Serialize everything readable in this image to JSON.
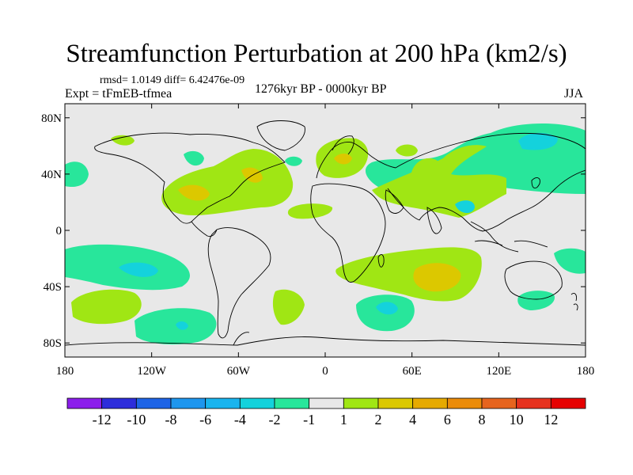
{
  "title": "Streamfunction Perturbation at 200 hPa (km2/s)",
  "stats_line": "rmsd= 1.0149 diff= 6.42476e-09",
  "experiment": "Expt = tFmEB-tfmea",
  "period": "1276kyr BP - 0000kyr BP",
  "season": "JJA",
  "lat_ticks": [
    {
      "lat": 80,
      "label": "80N"
    },
    {
      "lat": 40,
      "label": "40N"
    },
    {
      "lat": 0,
      "label": "0"
    },
    {
      "lat": -40,
      "label": "40S"
    },
    {
      "lat": -80,
      "label": "80S"
    }
  ],
  "lon_ticks": [
    {
      "lon": -180,
      "label": "180"
    },
    {
      "lon": -120,
      "label": "120W"
    },
    {
      "lon": -60,
      "label": "60W"
    },
    {
      "lon": 0,
      "label": "0"
    },
    {
      "lon": 60,
      "label": "60E"
    },
    {
      "lon": 120,
      "label": "120E"
    },
    {
      "lon": 180,
      "label": "180"
    }
  ],
  "colorbar": {
    "colors": [
      "#8c1eeb",
      "#2d2ddb",
      "#1e64e6",
      "#1e96ee",
      "#19b4ee",
      "#14d2dc",
      "#28e69b",
      "#e8e8e8",
      "#a0e614",
      "#dcc800",
      "#e6aa00",
      "#eb8c0a",
      "#e6641e",
      "#e6321e",
      "#e60000"
    ],
    "labels": [
      "-12",
      "-10",
      "-8",
      "-6",
      "-4",
      "-2",
      "-1",
      "1",
      "2",
      "4",
      "6",
      "8",
      "10",
      "12"
    ]
  },
  "map_colors": {
    "background": "#e8e8e8",
    "cyan": "#14d2dc",
    "green": "#28e69b",
    "lime": "#a0e614",
    "mustard": "#dcc800",
    "orange": "#e6aa00",
    "blue": "#19b4ee"
  }
}
